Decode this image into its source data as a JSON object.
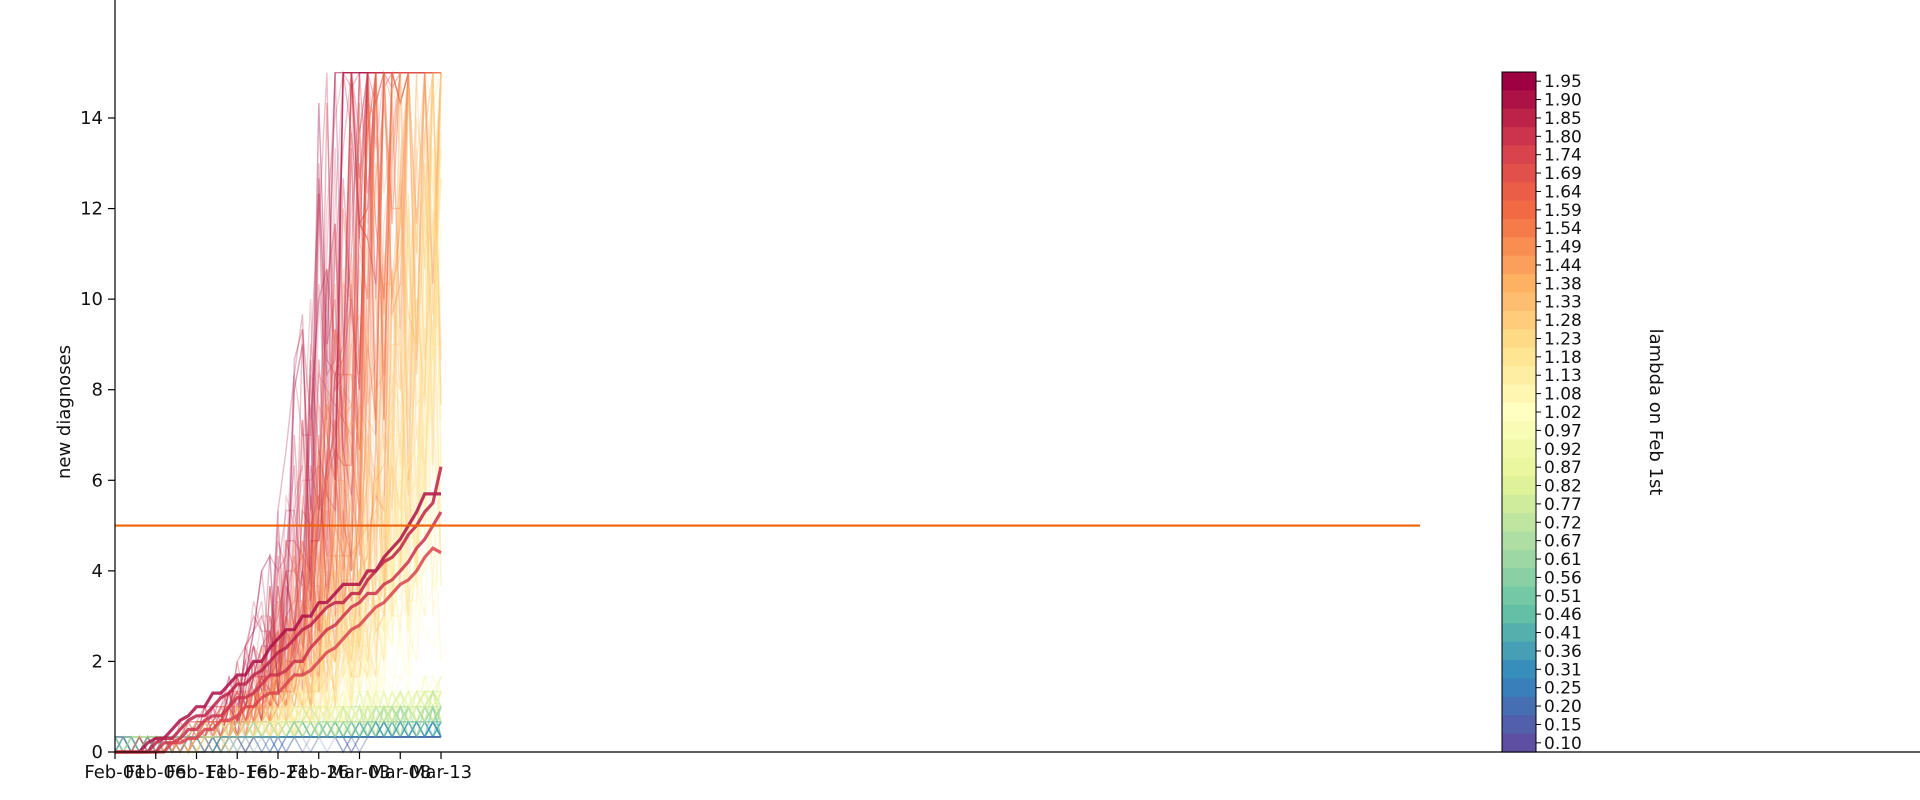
{
  "chart_data": {
    "type": "line",
    "title": "",
    "xlabel": "",
    "ylabel": "new diagnoses",
    "x_tick_labels": [
      "Feb-01",
      "Feb-06",
      "Feb-11",
      "Feb-16",
      "Feb-21",
      "Feb-26",
      "Mar-03",
      "Mar-08",
      "Mar-13"
    ],
    "x_start_label": "Feb-01",
    "num_days": 41,
    "y_ticks": [
      0,
      2,
      4,
      6,
      8,
      10,
      12,
      14
    ],
    "ylim": [
      0,
      16
    ],
    "threshold": {
      "value": 5,
      "color": "#f0620a"
    },
    "colorbar": {
      "label": "lambda on Feb 1st",
      "colormap": "Spectral_r",
      "tick_labels": [
        "1.95",
        "1.90",
        "1.85",
        "1.80",
        "1.74",
        "1.69",
        "1.64",
        "1.59",
        "1.54",
        "1.49",
        "1.44",
        "1.38",
        "1.33",
        "1.28",
        "1.23",
        "1.18",
        "1.13",
        "1.08",
        "1.02",
        "0.97",
        "0.92",
        "0.87",
        "0.82",
        "0.77",
        "0.72",
        "0.67",
        "0.61",
        "0.56",
        "0.51",
        "0.46",
        "0.41",
        "0.36",
        "0.31",
        "0.25",
        "0.20",
        "0.15",
        "0.10"
      ],
      "min": 0.1,
      "max": 1.95
    },
    "highlighted_series": [
      {
        "lambda": 1.9,
        "values": [
          0,
          0,
          0,
          0,
          0.2,
          0.3,
          0.3,
          0.5,
          0.7,
          0.8,
          1.0,
          1.0,
          1.3,
          1.3,
          1.5,
          1.7,
          1.7,
          2.0,
          2.0,
          2.3,
          2.5,
          2.7,
          2.7,
          3.0,
          3.0,
          3.3,
          3.3,
          3.5,
          3.7,
          3.7,
          3.7,
          4.0,
          4.0,
          4.3,
          4.5,
          4.7,
          5.0,
          5.3,
          5.7,
          5.7,
          5.7
        ]
      },
      {
        "lambda": 1.85,
        "values": [
          0,
          0,
          0,
          0,
          0,
          0.2,
          0.3,
          0.3,
          0.5,
          0.7,
          0.8,
          0.8,
          1.0,
          1.2,
          1.3,
          1.5,
          1.5,
          1.7,
          1.8,
          2.0,
          2.2,
          2.3,
          2.5,
          2.7,
          2.8,
          3.0,
          3.2,
          3.3,
          3.3,
          3.5,
          3.5,
          3.8,
          4.0,
          4.2,
          4.3,
          4.5,
          4.8,
          5.0,
          5.3,
          5.5,
          6.3
        ]
      },
      {
        "lambda": 1.8,
        "values": [
          0,
          0,
          0,
          0,
          0,
          0,
          0.2,
          0.2,
          0.3,
          0.5,
          0.5,
          0.7,
          0.8,
          0.8,
          1.0,
          1.2,
          1.2,
          1.3,
          1.5,
          1.7,
          1.7,
          1.8,
          2.0,
          2.0,
          2.3,
          2.5,
          2.7,
          2.8,
          3.0,
          3.2,
          3.3,
          3.5,
          3.5,
          3.7,
          3.8,
          4.0,
          4.2,
          4.5,
          4.7,
          5.0,
          5.3
        ]
      },
      {
        "lambda": 1.74,
        "values": [
          0,
          0,
          0,
          0,
          0,
          0,
          0,
          0.2,
          0.2,
          0.3,
          0.3,
          0.5,
          0.5,
          0.7,
          0.7,
          0.8,
          1.0,
          1.0,
          1.2,
          1.3,
          1.3,
          1.5,
          1.7,
          1.7,
          1.8,
          2.0,
          2.2,
          2.3,
          2.5,
          2.7,
          2.8,
          3.0,
          3.2,
          3.3,
          3.5,
          3.7,
          3.8,
          4.0,
          4.3,
          4.5,
          4.4
        ]
      }
    ]
  }
}
